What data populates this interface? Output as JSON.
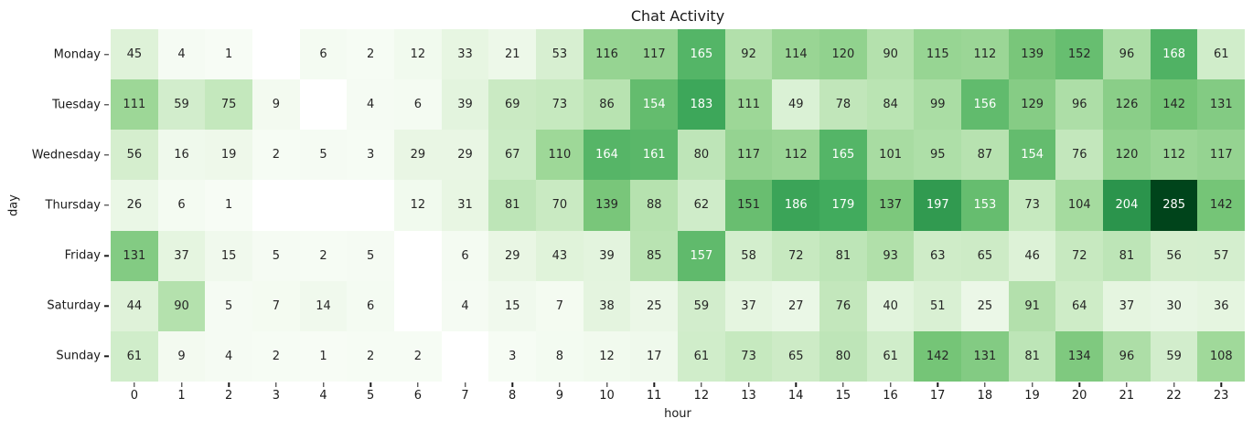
{
  "chart_data": {
    "type": "heatmap",
    "title": "Chat Activity",
    "xlabel": "hour",
    "ylabel": "day",
    "x_ticks": [
      "0",
      "1",
      "2",
      "3",
      "4",
      "5",
      "6",
      "7",
      "8",
      "9",
      "10",
      "11",
      "12",
      "13",
      "14",
      "15",
      "16",
      "17",
      "18",
      "19",
      "20",
      "21",
      "22",
      "23"
    ],
    "y_ticks": [
      "Monday",
      "Tuesday",
      "Wednesday",
      "Thursday",
      "Friday",
      "Saturday",
      "Sunday"
    ],
    "colormap": "Greens",
    "vmin": 1,
    "vmax": 285,
    "null_cell_color": "#ffffff",
    "dark_text_color": "#262626",
    "light_text_color": "#ffffff",
    "series": [
      {
        "name": "Monday",
        "values": [
          45,
          4,
          1,
          null,
          6,
          2,
          12,
          33,
          21,
          53,
          116,
          117,
          165,
          92,
          114,
          120,
          90,
          115,
          112,
          139,
          152,
          96,
          168,
          61
        ]
      },
      {
        "name": "Tuesday",
        "values": [
          111,
          59,
          75,
          9,
          null,
          4,
          6,
          39,
          69,
          73,
          86,
          154,
          183,
          111,
          49,
          78,
          84,
          99,
          156,
          129,
          96,
          126,
          142,
          131
        ]
      },
      {
        "name": "Wednesday",
        "values": [
          56,
          16,
          19,
          2,
          5,
          3,
          29,
          29,
          67,
          110,
          164,
          161,
          80,
          117,
          112,
          165,
          101,
          95,
          87,
          154,
          76,
          120,
          112,
          117
        ]
      },
      {
        "name": "Thursday",
        "values": [
          26,
          6,
          1,
          null,
          null,
          null,
          12,
          31,
          81,
          70,
          139,
          88,
          62,
          151,
          186,
          179,
          137,
          197,
          153,
          73,
          104,
          204,
          285,
          142
        ]
      },
      {
        "name": "Friday",
        "values": [
          131,
          37,
          15,
          5,
          2,
          5,
          null,
          6,
          29,
          43,
          39,
          85,
          157,
          58,
          72,
          81,
          93,
          63,
          65,
          46,
          72,
          81,
          56,
          57
        ]
      },
      {
        "name": "Saturday",
        "values": [
          44,
          90,
          5,
          7,
          14,
          6,
          null,
          4,
          15,
          7,
          38,
          25,
          59,
          37,
          27,
          76,
          40,
          51,
          25,
          91,
          64,
          37,
          30,
          36
        ]
      },
      {
        "name": "Sunday",
        "values": [
          61,
          9,
          4,
          2,
          1,
          2,
          2,
          null,
          3,
          8,
          12,
          17,
          61,
          73,
          65,
          80,
          61,
          142,
          131,
          81,
          134,
          96,
          59,
          108
        ]
      }
    ]
  }
}
